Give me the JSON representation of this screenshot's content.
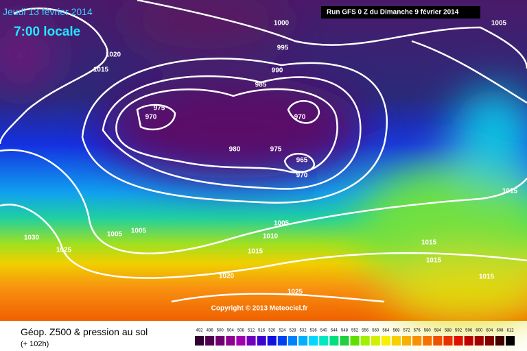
{
  "header": {
    "date": "Jeudi 13 février 2014",
    "time": "7:00 locale",
    "run": "Run GFS 0 Z du Dimanche 9 février 2014"
  },
  "isobar_labels": [
    "1000",
    "995",
    "990",
    "985",
    "1020",
    "1015",
    "975",
    "970",
    "970",
    "980",
    "975",
    "965",
    "970",
    "1005",
    "1015",
    "1005",
    "1005",
    "1005",
    "1010",
    "1015",
    "1030",
    "1025",
    "1015",
    "1015",
    "1015",
    "1020",
    "1025"
  ],
  "copyright": "Copyright © 2013 Meteociel.fr",
  "legend": {
    "title": "Géop. Z500 & pression au sol",
    "lead": "(+ 102h)",
    "scale": [
      "492",
      "496",
      "500",
      "504",
      "508",
      "512",
      "516",
      "520",
      "524",
      "528",
      "532",
      "536",
      "540",
      "544",
      "548",
      "552",
      "556",
      "560",
      "564",
      "568",
      "572",
      "576",
      "580",
      "584",
      "588",
      "592",
      "596",
      "600",
      "604",
      "608",
      "612"
    ]
  }
}
